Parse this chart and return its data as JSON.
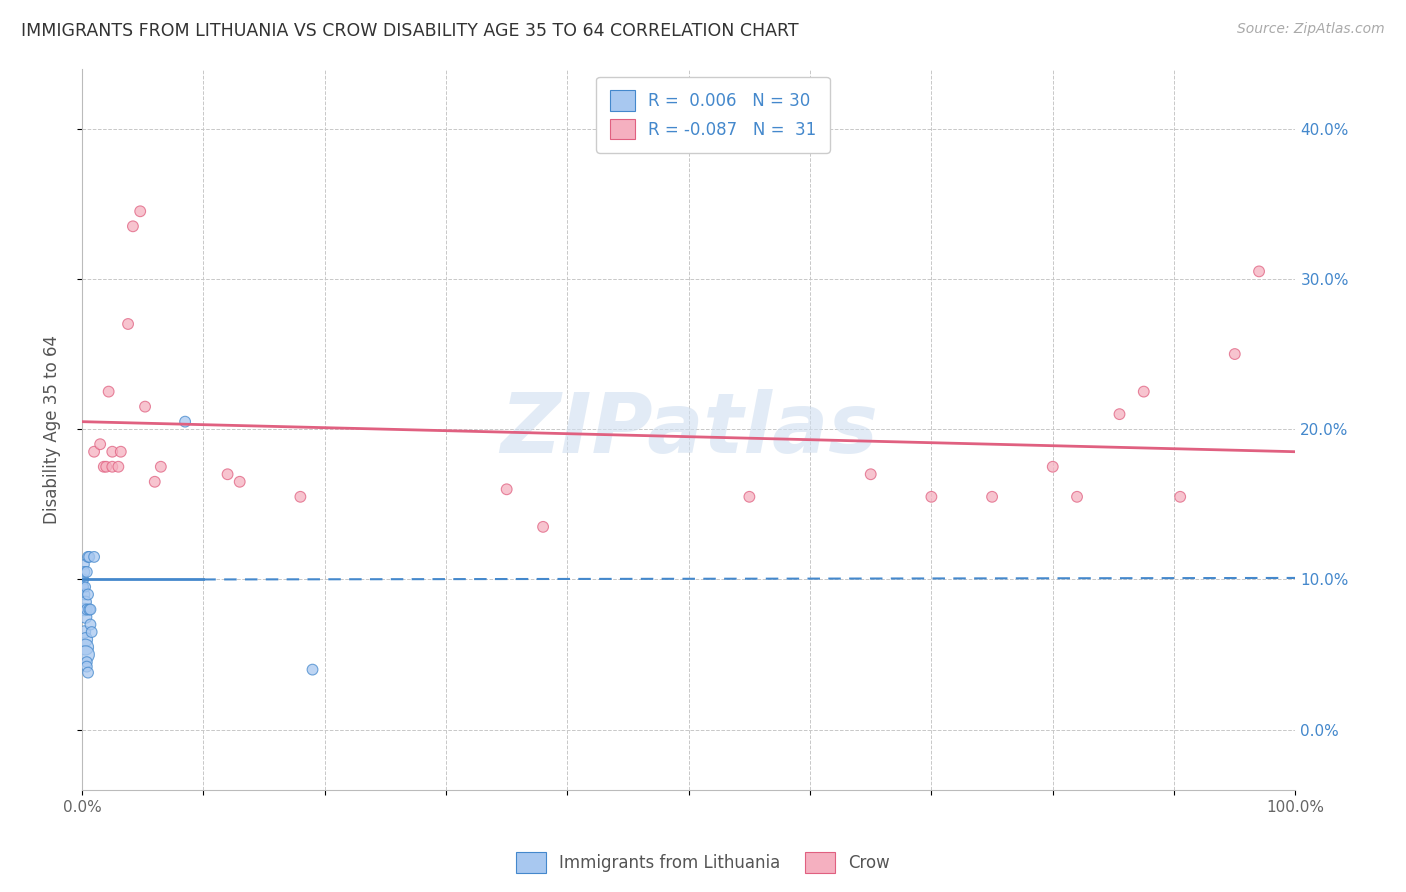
{
  "title": "IMMIGRANTS FROM LITHUANIA VS CROW DISABILITY AGE 35 TO 64 CORRELATION CHART",
  "source": "Source: ZipAtlas.com",
  "ylabel": "Disability Age 35 to 64",
  "xlim": [
    0.0,
    1.0
  ],
  "ylim": [
    -0.04,
    0.44
  ],
  "xticks": [
    0.0,
    0.1,
    0.2,
    0.3,
    0.4,
    0.5,
    0.6,
    0.7,
    0.8,
    0.9,
    1.0
  ],
  "xtick_labels": [
    "0.0%",
    "",
    "",
    "",
    "",
    "",
    "",
    "",
    "",
    "",
    "100.0%"
  ],
  "yticks": [
    0.0,
    0.1,
    0.2,
    0.3,
    0.4
  ],
  "ytick_labels_right": [
    "0.0%",
    "10.0%",
    "20.0%",
    "30.0%",
    "40.0%"
  ],
  "legend_r_blue": "R =  0.006",
  "legend_n_blue": "N = 30",
  "legend_r_pink": "R = -0.087",
  "legend_n_pink": "N =  31",
  "blue_scatter_x": [
    0.001,
    0.001,
    0.001,
    0.001,
    0.002,
    0.002,
    0.002,
    0.002,
    0.002,
    0.003,
    0.003,
    0.003,
    0.003,
    0.003,
    0.003,
    0.004,
    0.004,
    0.004,
    0.004,
    0.005,
    0.005,
    0.005,
    0.006,
    0.006,
    0.007,
    0.007,
    0.008,
    0.01,
    0.085,
    0.19
  ],
  "blue_scatter_y": [
    0.095,
    0.1,
    0.1,
    0.095,
    0.11,
    0.105,
    0.09,
    0.08,
    0.065,
    0.095,
    0.085,
    0.075,
    0.06,
    0.055,
    0.05,
    0.105,
    0.08,
    0.045,
    0.042,
    0.115,
    0.09,
    0.038,
    0.115,
    0.08,
    0.08,
    0.07,
    0.065,
    0.115,
    0.205,
    0.04
  ],
  "blue_scatter_size": [
    50,
    50,
    60,
    60,
    50,
    60,
    60,
    80,
    80,
    50,
    70,
    80,
    100,
    130,
    160,
    60,
    60,
    60,
    60,
    60,
    60,
    60,
    60,
    60,
    60,
    60,
    60,
    60,
    60,
    60
  ],
  "pink_scatter_x": [
    0.01,
    0.015,
    0.018,
    0.02,
    0.022,
    0.025,
    0.025,
    0.03,
    0.032,
    0.038,
    0.042,
    0.048,
    0.052,
    0.06,
    0.065,
    0.12,
    0.13,
    0.18,
    0.35,
    0.38,
    0.55,
    0.65,
    0.7,
    0.75,
    0.8,
    0.82,
    0.855,
    0.875,
    0.905,
    0.95,
    0.97
  ],
  "pink_scatter_y": [
    0.185,
    0.19,
    0.175,
    0.175,
    0.225,
    0.185,
    0.175,
    0.175,
    0.185,
    0.27,
    0.335,
    0.345,
    0.215,
    0.165,
    0.175,
    0.17,
    0.165,
    0.155,
    0.16,
    0.135,
    0.155,
    0.17,
    0.155,
    0.155,
    0.175,
    0.155,
    0.21,
    0.225,
    0.155,
    0.25,
    0.305
  ],
  "pink_scatter_size": [
    60,
    60,
    60,
    60,
    60,
    60,
    60,
    60,
    60,
    60,
    60,
    60,
    60,
    60,
    60,
    60,
    60,
    60,
    60,
    60,
    60,
    60,
    60,
    60,
    60,
    60,
    60,
    60,
    60,
    60,
    60
  ],
  "blue_line_x": [
    0.0,
    0.1,
    1.0
  ],
  "blue_line_y": [
    0.1,
    0.1,
    0.101
  ],
  "blue_line_solid_end": 0.1,
  "pink_line_x": [
    0.0,
    1.0
  ],
  "pink_line_y": [
    0.205,
    0.185
  ],
  "blue_color": "#A8C8F0",
  "pink_color": "#F5B0C0",
  "blue_line_color": "#4488CC",
  "pink_line_color": "#E06080",
  "grid_color": "#C8C8C8",
  "watermark_text": "ZIPatlas",
  "background_color": "#FFFFFF"
}
